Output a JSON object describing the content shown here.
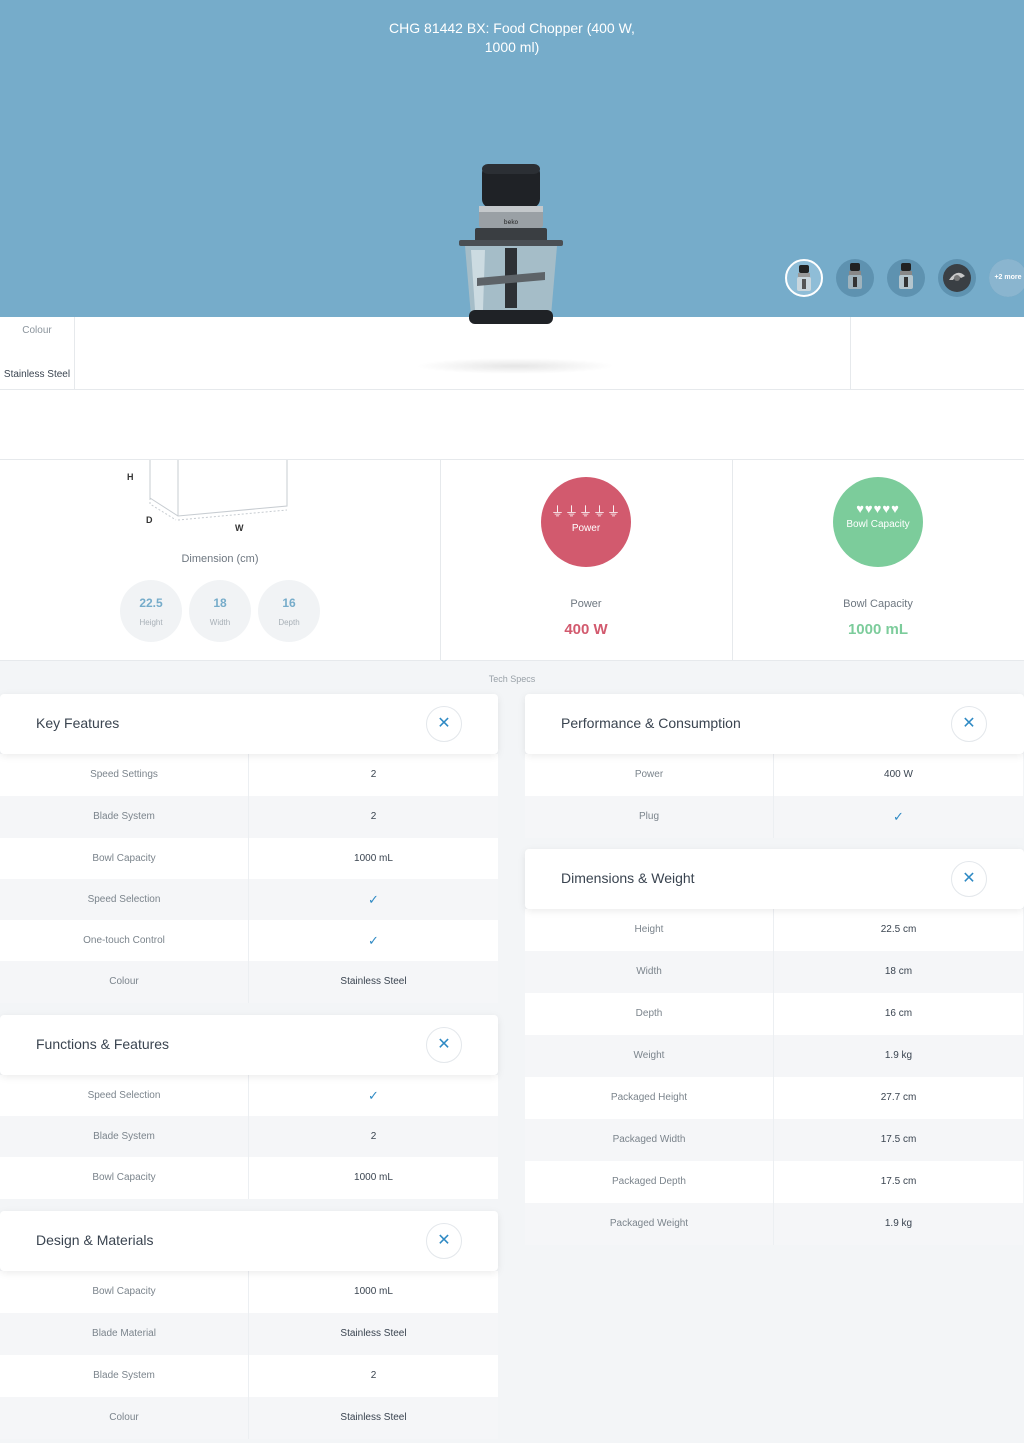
{
  "hero": {
    "title": "CHG 81442 BX: Food Chopper (400 W, 1000 ml)",
    "more_label": "+2 more",
    "background": "#76acca"
  },
  "colour": {
    "label": "Colour",
    "value": "Stainless Steel"
  },
  "dimensions": {
    "title": "Dimension (cm)",
    "axis_h": "H",
    "axis_d": "D",
    "axis_w": "W",
    "items": [
      {
        "value": "22.5",
        "label": "Height"
      },
      {
        "value": "18",
        "label": "Width"
      },
      {
        "value": "16",
        "label": "Depth"
      }
    ]
  },
  "features": [
    {
      "circle_label": "Power",
      "name": "Power",
      "value": "400 W",
      "color": "#d25a6e",
      "icon": "plug-icon"
    },
    {
      "circle_label": "Bowl Capacity",
      "name": "Bowl Capacity",
      "value": "1000 mL",
      "color": "#7ccc9b",
      "icon": "strawberry-icon"
    }
  ],
  "specs_title": "Tech Specs",
  "panels": {
    "key_features": {
      "title": "Key Features",
      "rows": [
        {
          "key": "Speed Settings",
          "value": "2"
        },
        {
          "key": "Blade System",
          "value": "2"
        },
        {
          "key": "Bowl Capacity",
          "value": "1000 mL"
        },
        {
          "key": "Speed Selection",
          "value": "✓"
        },
        {
          "key": "One-touch Control",
          "value": "✓"
        },
        {
          "key": "Colour",
          "value": "Stainless Steel"
        }
      ]
    },
    "functions": {
      "title": "Functions & Features",
      "rows": [
        {
          "key": "Speed Selection",
          "value": "✓"
        },
        {
          "key": "Blade System",
          "value": "2"
        },
        {
          "key": "Bowl Capacity",
          "value": "1000 mL"
        }
      ]
    },
    "design": {
      "title": "Design & Materials",
      "rows": [
        {
          "key": "Bowl Capacity",
          "value": "1000 mL"
        },
        {
          "key": "Blade Material",
          "value": "Stainless Steel"
        },
        {
          "key": "Blade System",
          "value": "2"
        },
        {
          "key": "Colour",
          "value": "Stainless Steel"
        }
      ]
    },
    "performance": {
      "title": "Performance & Consumption",
      "rows": [
        {
          "key": "Power",
          "value": "400 W"
        },
        {
          "key": "Plug",
          "value": "✓"
        }
      ]
    },
    "dims_weight": {
      "title": "Dimensions & Weight",
      "rows": [
        {
          "key": "Height",
          "value": "22.5 cm"
        },
        {
          "key": "Width",
          "value": "18 cm"
        },
        {
          "key": "Depth",
          "value": "16 cm"
        },
        {
          "key": "Weight",
          "value": "1.9 kg"
        },
        {
          "key": "Packaged Height",
          "value": "27.7 cm"
        },
        {
          "key": "Packaged Width",
          "value": "17.5 cm"
        },
        {
          "key": "Packaged Depth",
          "value": "17.5 cm"
        },
        {
          "key": "Packaged Weight",
          "value": "1.9 kg"
        }
      ]
    }
  }
}
